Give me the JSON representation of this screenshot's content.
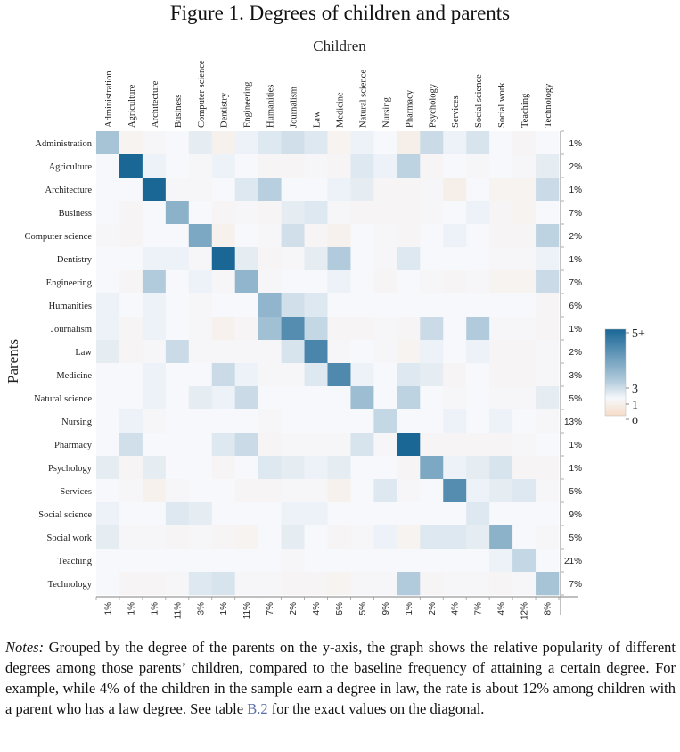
{
  "figure_title": "Figure 1. Degrees of children and parents",
  "notes": {
    "lead": "Notes:",
    "text_before_ref": " Grouped by the degree of the parents on the y-axis, the graph shows the relative popularity of different degrees among those parents’ children, compared to the baseline frequency of attaining a certain degree. For example, while 4% of the children in the sample earn a degree in law, the rate is about 12% among children with a parent who has a law degree. See table ",
    "ref": "B.2",
    "text_after_ref": " for the exact values on the diagonal."
  },
  "colors": {
    "high": "#1a6796",
    "neutral": "#f6f8fb",
    "low": "#f6dcc7",
    "axis": "#999999"
  },
  "chart_data": {
    "type": "heatmap",
    "title": "Figure 1. Degrees of children and parents",
    "xlabel": "Children",
    "ylabel": "Parents",
    "categories": [
      "Administration",
      "Agriculture",
      "Architecture",
      "Business",
      "Computer science",
      "Dentistry",
      "Engineering",
      "Humanities",
      "Journalism",
      "Law",
      "Medicine",
      "Natural science",
      "Nursing",
      "Pharmacy",
      "Psychology",
      "Services",
      "Social science",
      "Social work",
      "Teaching",
      "Technology"
    ],
    "row_shares": [
      "1%",
      "2%",
      "1%",
      "7%",
      "2%",
      "1%",
      "7%",
      "6%",
      "1%",
      "2%",
      "3%",
      "5%",
      "13%",
      "1%",
      "1%",
      "5%",
      "9%",
      "5%",
      "21%",
      "7%"
    ],
    "column_shares": [
      "1%",
      "1%",
      "1%",
      "11%",
      "3%",
      "1%",
      "11%",
      "7%",
      "2%",
      "4%",
      "5%",
      "5%",
      "9%",
      "1%",
      "2%",
      "4%",
      "7%",
      "4%",
      "12%",
      "8%"
    ],
    "colorbar": {
      "min": 0,
      "max": 5,
      "ticks": [
        {
          "value": 5,
          "label": "5+"
        },
        {
          "value": 3,
          "label": "3"
        },
        {
          "value": 1,
          "label": "1"
        },
        {
          "value": 0,
          "label": "o"
        }
      ]
    },
    "values": [
      [
        2.2,
        0.7,
        0.9,
        1.0,
        1.2,
        0.6,
        1.1,
        1.3,
        1.5,
        1.3,
        0.7,
        1.1,
        1.0,
        0.5,
        1.6,
        1.1,
        1.4,
        1.0,
        0.8,
        1.0
      ],
      [
        1.0,
        5.0,
        1.1,
        1.0,
        0.9,
        1.1,
        1.0,
        0.8,
        0.8,
        0.9,
        0.8,
        1.3,
        1.1,
        1.8,
        0.8,
        1.0,
        0.9,
        1.0,
        0.9,
        1.2
      ],
      [
        1.0,
        1.0,
        5.0,
        0.9,
        0.9,
        1.0,
        1.3,
        1.9,
        1.0,
        1.0,
        1.1,
        1.2,
        0.8,
        0.8,
        0.9,
        0.5,
        1.0,
        0.7,
        0.7,
        1.6
      ],
      [
        1.0,
        0.8,
        1.0,
        2.7,
        1.0,
        0.8,
        0.9,
        0.8,
        1.2,
        1.3,
        0.9,
        0.8,
        0.8,
        0.8,
        0.9,
        1.0,
        1.1,
        0.8,
        0.7,
        1.0
      ],
      [
        0.9,
        0.8,
        1.0,
        1.0,
        3.0,
        0.6,
        1.0,
        0.9,
        1.5,
        0.8,
        0.6,
        1.0,
        0.9,
        0.8,
        1.0,
        1.1,
        1.0,
        0.8,
        0.8,
        1.8
      ],
      [
        1.0,
        1.0,
        1.1,
        1.1,
        0.9,
        5.0,
        1.2,
        0.8,
        0.9,
        1.2,
        2.0,
        1.0,
        0.9,
        1.3,
        1.0,
        1.0,
        1.0,
        0.9,
        0.9,
        1.1
      ],
      [
        1.0,
        0.8,
        2.0,
        1.0,
        1.1,
        0.9,
        2.6,
        0.9,
        1.0,
        1.0,
        1.1,
        1.0,
        0.8,
        1.0,
        0.9,
        0.8,
        0.9,
        0.7,
        0.7,
        1.6
      ],
      [
        1.1,
        1.0,
        1.1,
        1.0,
        0.9,
        1.0,
        1.0,
        2.6,
        1.5,
        1.3,
        1.0,
        1.0,
        1.0,
        1.0,
        1.0,
        1.0,
        1.0,
        1.0,
        1.0,
        0.8
      ],
      [
        1.1,
        0.8,
        1.1,
        1.0,
        0.9,
        0.6,
        0.8,
        2.3,
        3.8,
        1.7,
        0.8,
        0.8,
        0.9,
        0.8,
        1.6,
        1.0,
        2.0,
        0.9,
        0.9,
        0.8
      ],
      [
        1.2,
        0.8,
        0.9,
        1.6,
        0.9,
        0.9,
        0.9,
        0.9,
        1.4,
        4.0,
        0.9,
        1.0,
        0.9,
        0.7,
        1.1,
        1.0,
        1.1,
        0.8,
        0.8,
        0.9
      ],
      [
        1.0,
        1.0,
        1.1,
        1.0,
        1.0,
        1.6,
        1.1,
        0.9,
        0.9,
        1.3,
        3.9,
        1.1,
        1.0,
        1.3,
        1.2,
        0.8,
        1.0,
        0.8,
        0.8,
        0.9
      ],
      [
        1.0,
        1.0,
        1.1,
        1.0,
        1.2,
        1.1,
        1.6,
        1.0,
        1.0,
        1.0,
        1.0,
        2.4,
        1.0,
        1.8,
        1.0,
        0.9,
        1.0,
        0.9,
        0.9,
        1.2
      ],
      [
        1.0,
        1.1,
        0.9,
        1.0,
        1.0,
        1.0,
        1.0,
        0.9,
        1.0,
        1.0,
        1.0,
        1.0,
        1.7,
        1.0,
        1.0,
        1.1,
        1.0,
        1.1,
        1.0,
        0.9
      ],
      [
        1.0,
        1.5,
        1.0,
        1.0,
        1.0,
        1.3,
        1.6,
        0.8,
        0.9,
        0.9,
        0.9,
        1.4,
        0.9,
        5.0,
        0.8,
        0.8,
        0.8,
        0.8,
        0.9,
        1.0
      ],
      [
        1.2,
        0.8,
        1.2,
        1.0,
        1.0,
        0.8,
        1.0,
        1.3,
        1.2,
        1.1,
        1.2,
        1.0,
        1.0,
        0.8,
        3.0,
        1.1,
        1.2,
        1.4,
        0.8,
        0.8
      ],
      [
        1.0,
        0.9,
        0.6,
        0.9,
        1.0,
        1.0,
        0.8,
        0.8,
        0.9,
        0.9,
        0.6,
        1.0,
        1.3,
        0.9,
        1.0,
        3.8,
        1.1,
        1.2,
        1.3,
        0.9
      ],
      [
        1.1,
        1.0,
        1.0,
        1.3,
        1.2,
        1.0,
        1.0,
        1.0,
        1.1,
        1.1,
        1.0,
        1.0,
        1.0,
        1.0,
        1.0,
        1.0,
        1.3,
        1.0,
        1.0,
        1.0
      ],
      [
        1.2,
        0.9,
        0.9,
        0.8,
        0.9,
        0.8,
        0.7,
        1.0,
        1.2,
        1.0,
        0.8,
        0.9,
        1.1,
        0.7,
        1.3,
        1.3,
        1.2,
        2.7,
        1.0,
        0.9
      ],
      [
        1.0,
        1.0,
        1.0,
        1.0,
        1.0,
        1.0,
        1.0,
        1.0,
        0.9,
        1.0,
        1.0,
        1.0,
        1.0,
        1.0,
        1.0,
        1.0,
        1.0,
        1.1,
        1.7,
        1.0
      ],
      [
        1.0,
        0.8,
        0.8,
        0.9,
        1.3,
        1.4,
        0.9,
        0.9,
        0.8,
        0.8,
        0.7,
        0.9,
        0.9,
        2.0,
        0.8,
        0.9,
        0.9,
        0.8,
        0.9,
        2.2
      ]
    ]
  }
}
